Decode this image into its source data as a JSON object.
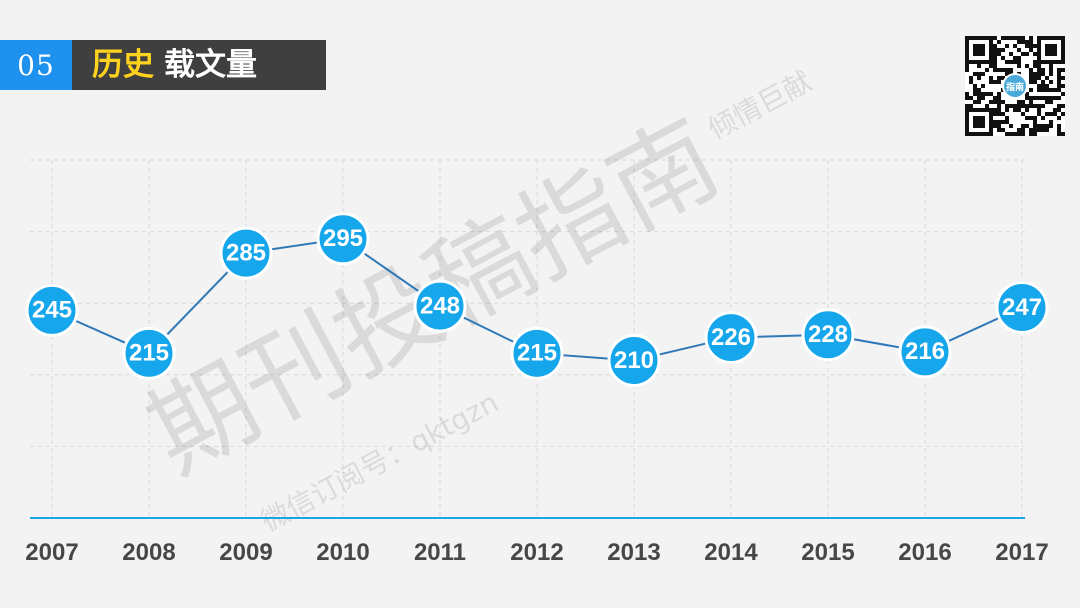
{
  "header": {
    "number": "05",
    "title_accent": "历史",
    "title_main": "载文量"
  },
  "watermark": {
    "main": "期刊投稿指南",
    "side": "倾情巨献",
    "sub": "微信订阅号：qktgzn"
  },
  "qr": {
    "badge": "指南"
  },
  "colors": {
    "point": "#16a6eb",
    "line": "#2f78b7",
    "axis": "#1ca6df",
    "grid": "#d8d8d8",
    "header_number_bg": "#1e90ee",
    "header_title_bg": "#3f3f3f",
    "title_accent": "#ffd21e"
  },
  "chart_data": {
    "type": "line",
    "categories": [
      "2007",
      "2008",
      "2009",
      "2010",
      "2011",
      "2012",
      "2013",
      "2014",
      "2015",
      "2016",
      "2017"
    ],
    "values": [
      245,
      215,
      285,
      295,
      248,
      215,
      210,
      226,
      228,
      216,
      247
    ],
    "labels": [
      "245",
      "215",
      "285",
      "295",
      "248",
      "215",
      "210",
      "226",
      "228",
      "216",
      "247"
    ],
    "ylim": [
      100,
      350
    ],
    "grid": true
  }
}
